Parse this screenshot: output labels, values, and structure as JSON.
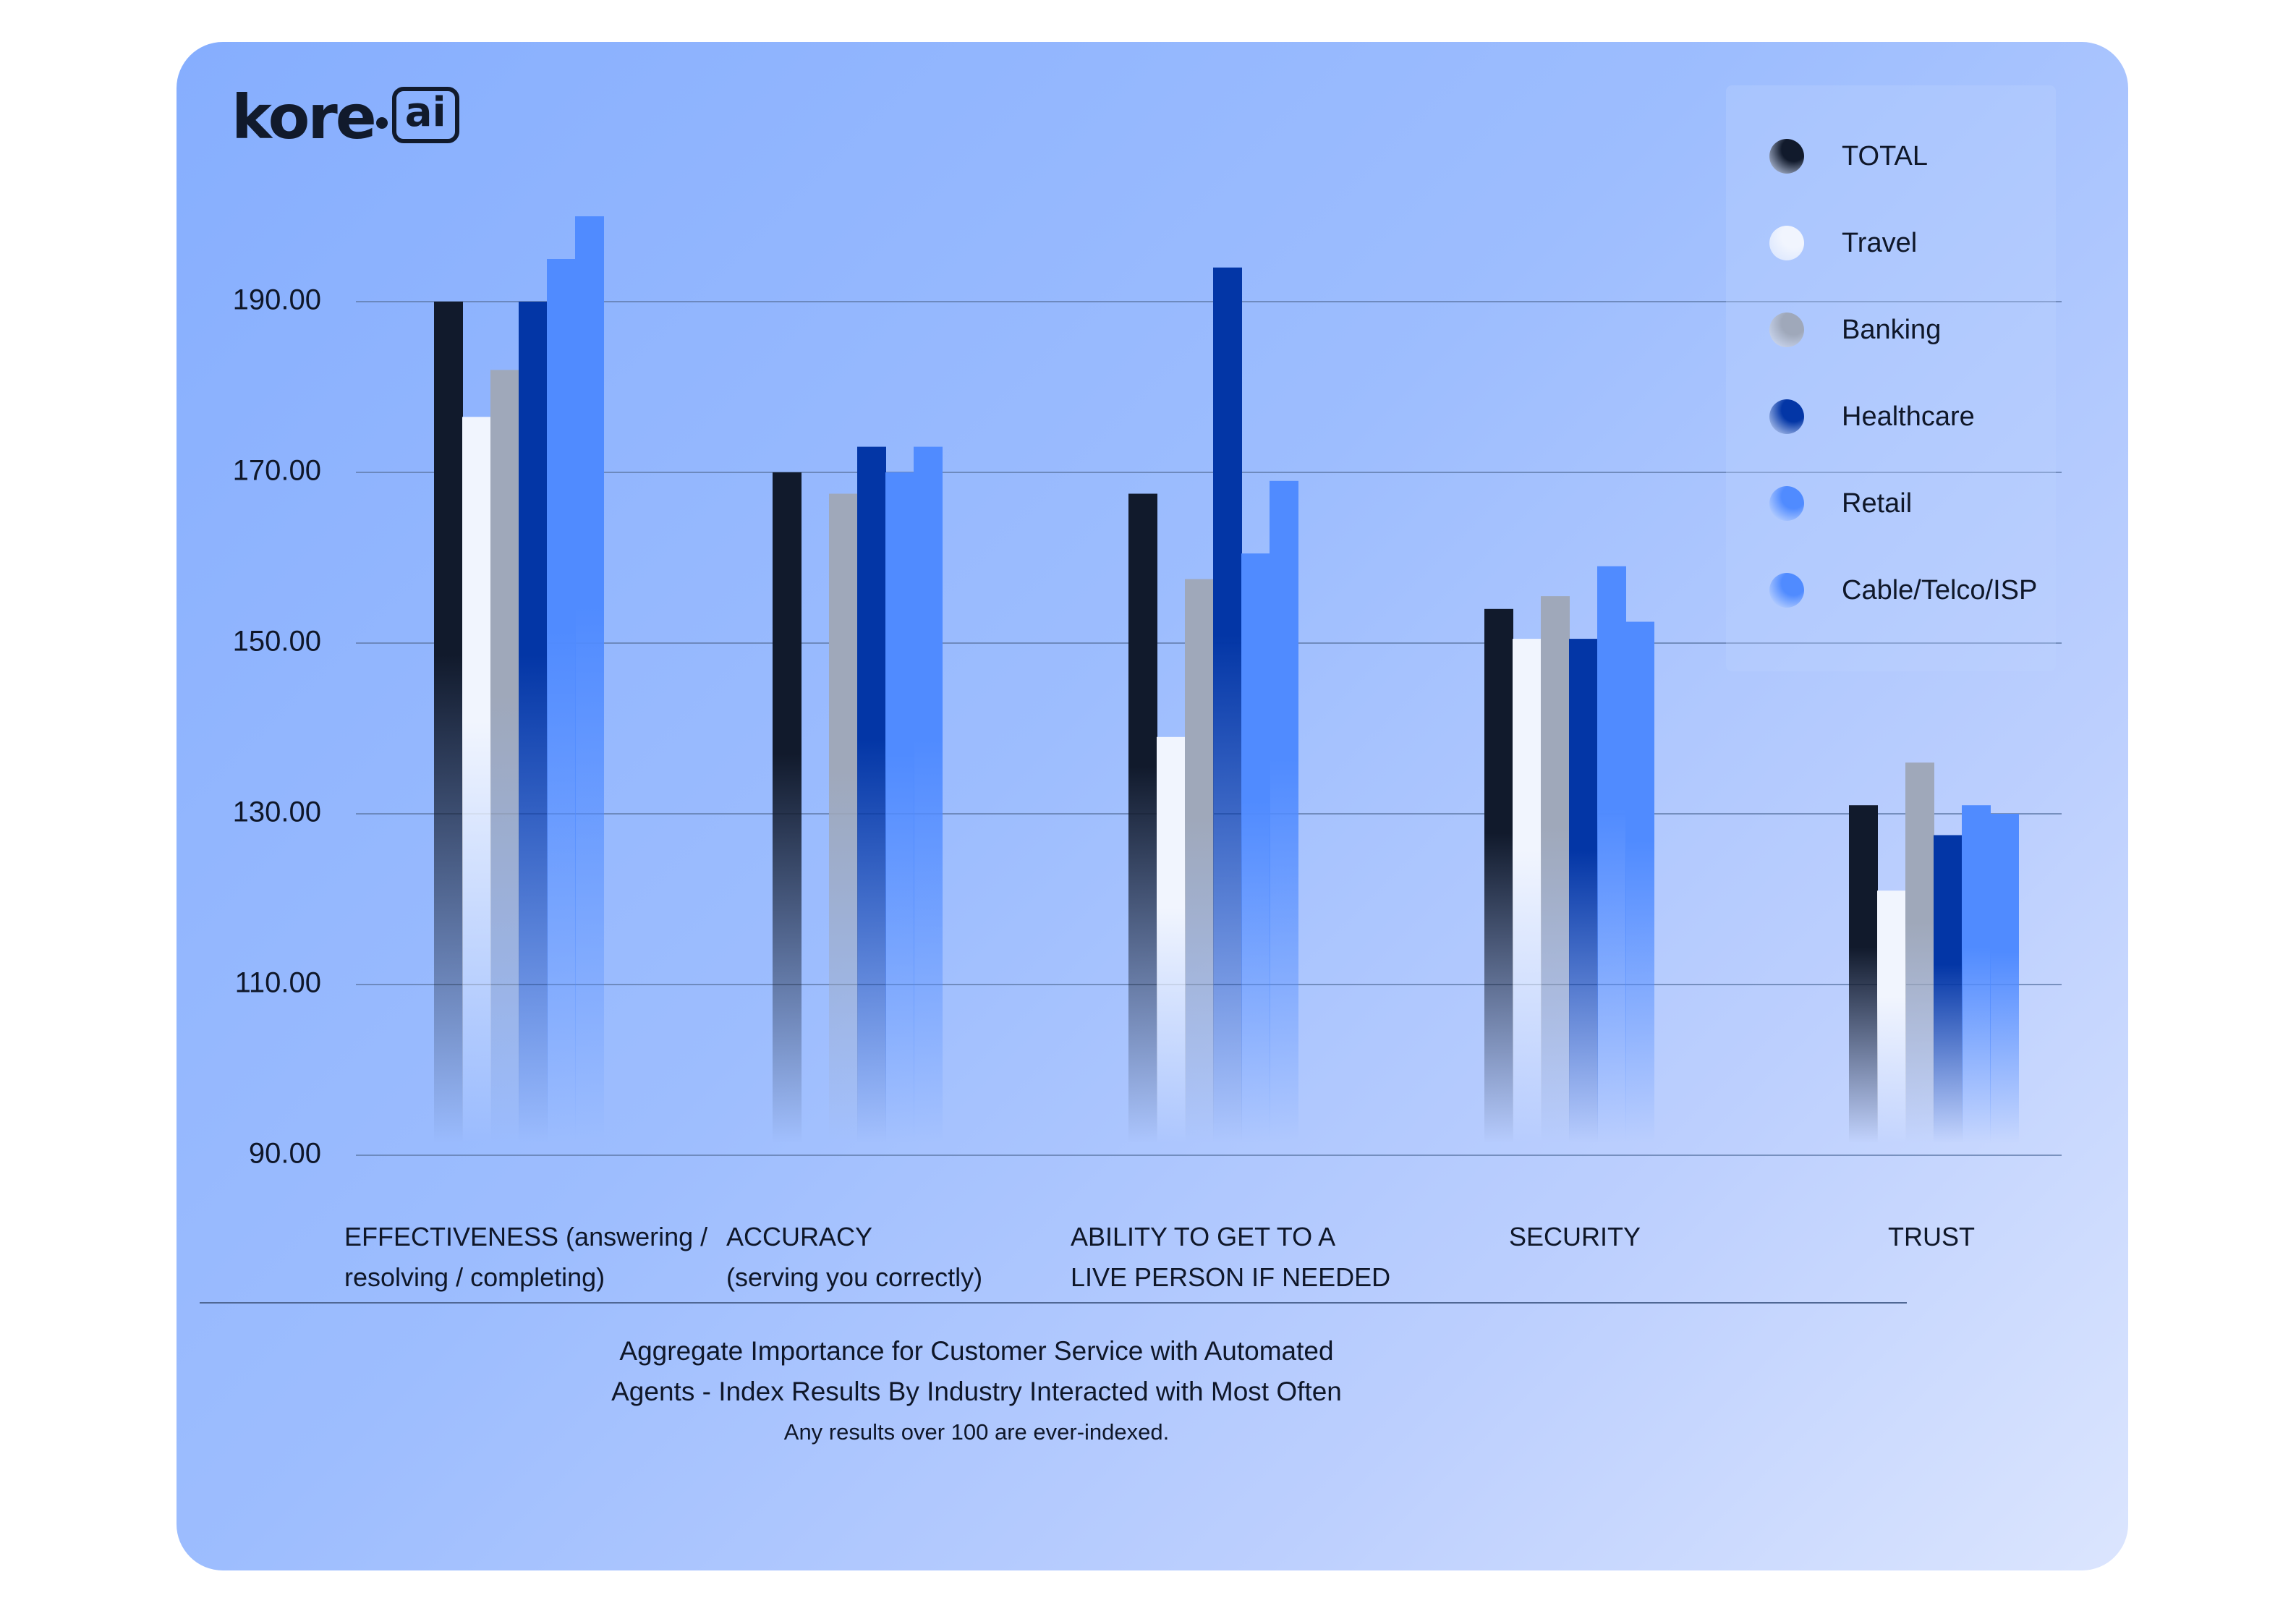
{
  "brand": {
    "word": "kore",
    "box": "ai"
  },
  "colors": {
    "TOTAL": "#111a2c",
    "Travel": "#f1f5fe",
    "Banking": "#9fa8ba",
    "Healthcare": "#0336a6",
    "Retail": "#508bff",
    "Cable/Telco/ISP": "#508bff"
  },
  "caption": {
    "line1": "Aggregate Importance for Customer Service with Automated",
    "line2": "Agents - Index Results By Industry Interacted with Most Often",
    "note": "Any results over 100 are ever-indexed."
  },
  "chart_data": {
    "type": "bar",
    "ylim": [
      90,
      200
    ],
    "yticks": [
      "190.00",
      "170.00",
      "150.00",
      "130.00",
      "110.00",
      "90.00"
    ],
    "grid": true,
    "legend_position": "top-right",
    "categories": [
      [
        "EFFECTIVENESS (answering /",
        "resolving / completing)"
      ],
      [
        "ACCURACY",
        "(serving you correctly)"
      ],
      [
        "ABILITY TO GET TO A",
        "LIVE PERSON IF NEEDED"
      ],
      [
        "SECURITY"
      ],
      [
        "TRUST"
      ]
    ],
    "series": [
      {
        "name": "TOTAL",
        "values": [
          190,
          170,
          167.5,
          154,
          131
        ]
      },
      {
        "name": "Travel",
        "values": [
          176.5,
          null,
          139,
          150.5,
          121
        ]
      },
      {
        "name": "Banking",
        "values": [
          182,
          167.5,
          157.5,
          155.5,
          136
        ]
      },
      {
        "name": "Healthcare",
        "values": [
          190,
          173,
          194,
          150.5,
          127.5
        ]
      },
      {
        "name": "Retail",
        "values": [
          195,
          170,
          160.5,
          159,
          131
        ]
      },
      {
        "name": "Cable/Telco/ISP",
        "values": [
          200,
          173,
          169,
          152.5,
          130
        ]
      }
    ]
  }
}
